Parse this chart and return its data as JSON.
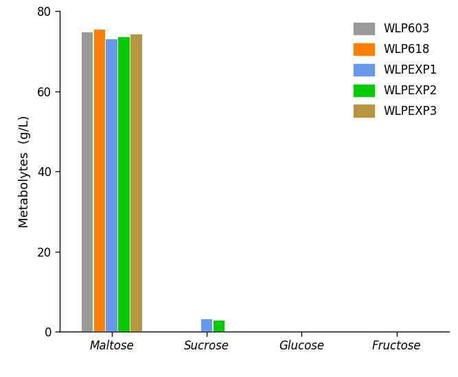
{
  "categories": [
    "Maltose",
    "Sucrose",
    "Glucose",
    "Fructose"
  ],
  "series": [
    {
      "label": "WLP603",
      "color": "#999999",
      "values": [
        74.8,
        0.0,
        0.0,
        0.0
      ]
    },
    {
      "label": "WLP618",
      "color": "#ff8000",
      "values": [
        75.5,
        0.0,
        0.0,
        0.0
      ]
    },
    {
      "label": "WLPEXP1",
      "color": "#6699ee",
      "values": [
        73.0,
        3.2,
        0.0,
        0.0
      ]
    },
    {
      "label": "WLPEXP2",
      "color": "#00cc00",
      "values": [
        73.5,
        2.8,
        0.0,
        0.0
      ]
    },
    {
      "label": "WLPEXP3",
      "color": "#b8963e",
      "values": [
        74.2,
        0.0,
        0.0,
        0.0
      ]
    }
  ],
  "ylabel_main": "Metabolytes",
  "ylabel_unit": "(g/L)",
  "ylim": [
    0,
    80
  ],
  "yticks": [
    0,
    20,
    40,
    60,
    80
  ],
  "bar_width": 0.13,
  "x_positions": [
    0.0,
    1.0,
    2.0,
    3.0
  ],
  "background_color": "#ffffff",
  "legend_fontsize": 12,
  "axis_label_fontsize": 13,
  "tick_fontsize": 12
}
